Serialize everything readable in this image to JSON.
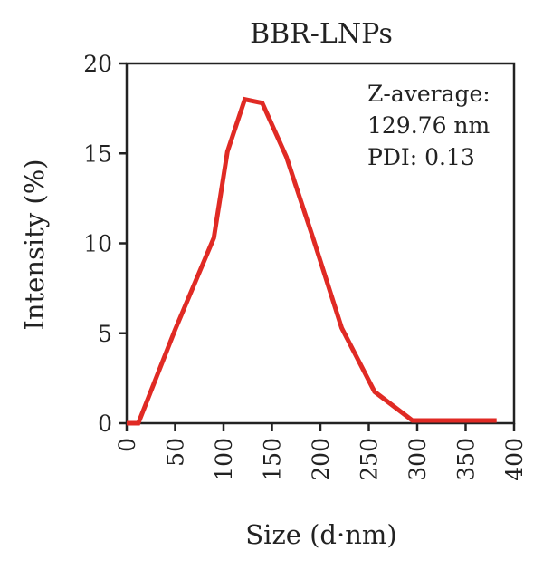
{
  "chart_data": {
    "type": "line",
    "title": "BBR-LNPs",
    "xlabel": "Size (d·nm)",
    "ylabel": "Intensity (%)",
    "xlim": [
      0,
      400
    ],
    "ylim": [
      0,
      20
    ],
    "xticks": [
      0,
      50,
      100,
      150,
      200,
      250,
      300,
      350,
      400
    ],
    "yticks": [
      0,
      5,
      10,
      15,
      20
    ],
    "grid": false,
    "series": [
      {
        "color": "#e02a24",
        "x": [
          0,
          12,
          50,
          90,
          104,
          122,
          140,
          165,
          193,
          222,
          256,
          295,
          335,
          382
        ],
        "y": [
          0,
          0,
          5.2,
          10.3,
          15.1,
          18.0,
          17.8,
          14.8,
          10.2,
          5.3,
          1.75,
          0.15,
          0.15,
          0.15
        ]
      }
    ],
    "annotations": [
      "Z-average:",
      "129.76 nm",
      "PDI: 0.13"
    ]
  }
}
